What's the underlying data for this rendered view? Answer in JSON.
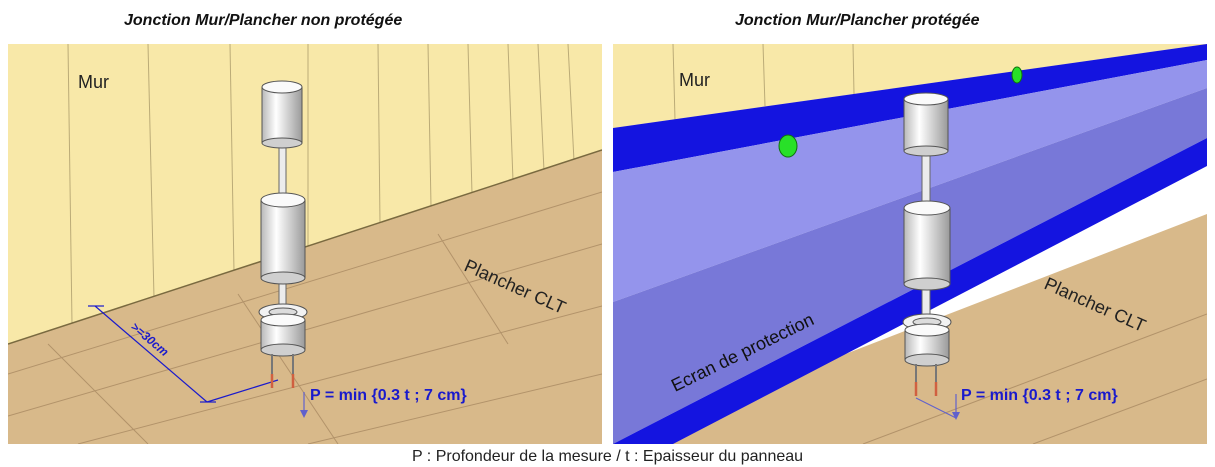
{
  "left_panel": {
    "title": "Jonction Mur/Plancher non protégée",
    "wall_label": "Mur",
    "floor_label": "Plancher CLT",
    "distance_label": ">=30cm",
    "formula": "P = min {0.3 t ; 7 cm}"
  },
  "right_panel": {
    "title": "Jonction Mur/Plancher protégée",
    "wall_label": "Mur",
    "floor_label": "Plancher CLT",
    "screen_label": "Ecran de protection",
    "formula": "P = min {0.3 t ; 7 cm}"
  },
  "caption": "P : Profondeur de la mesure / t : Epaisseur du panneau",
  "colors": {
    "wall": "#F8E8A8",
    "floor": "#D8B98A",
    "screen_face": "#8C8CE4",
    "screen_edge": "#1414E0",
    "marker": "#28E028",
    "formula": "#1A1ACC"
  }
}
